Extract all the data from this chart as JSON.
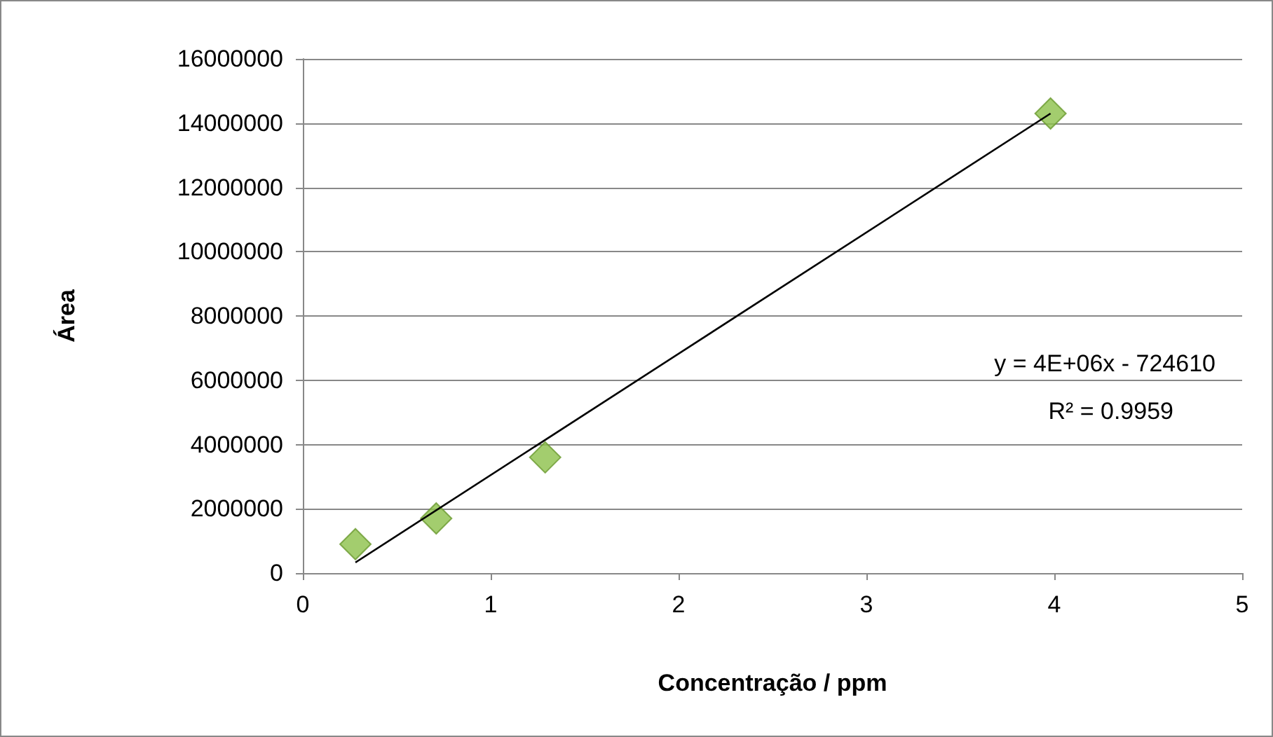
{
  "chart_data": {
    "type": "scatter",
    "xlabel": "Concentração / ppm",
    "ylabel": "Área",
    "series": [
      {
        "color": "#8cc04a",
        "marker": "diamond",
        "x": [
          0.28,
          0.71,
          1.29,
          3.98
        ],
        "values": [
          900000,
          1700000,
          3600000,
          14300000
        ]
      },
      {
        "type": "line",
        "color": "#000000",
        "marker": "none",
        "x": [
          0.28,
          3.98
        ],
        "values": [
          330000,
          14300000
        ]
      }
    ],
    "xlim": [
      0,
      5
    ],
    "xticks": [
      0,
      1,
      2,
      3,
      4,
      5
    ],
    "ylim": [
      0,
      16000000
    ],
    "yticks": [
      0,
      2000000,
      4000000,
      6000000,
      8000000,
      10000000,
      12000000,
      14000000,
      16000000
    ],
    "grid": "y",
    "annotations": [
      "y = 4E+06x - 724610",
      "R² = 0.9959"
    ]
  }
}
